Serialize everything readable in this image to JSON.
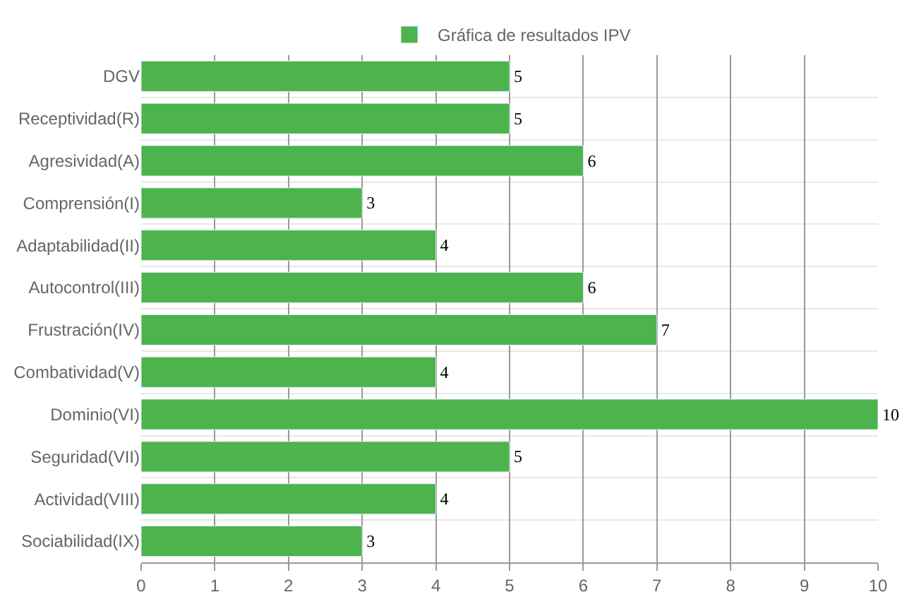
{
  "chart_data": {
    "type": "bar",
    "orientation": "horizontal",
    "categories": [
      "DGV",
      "Receptividad(R)",
      "Agresividad(A)",
      "Comprensión(I)",
      "Adaptabilidad(II)",
      "Autocontrol(III)",
      "Frustración(IV)",
      "Combatividad(V)",
      "Dominio(VI)",
      "Seguridad(VII)",
      "Actividad(VIII)",
      "Sociabilidad(IX)"
    ],
    "series": [
      {
        "name": "Gráfica de resultados IPV",
        "color": "#4db34d",
        "values": [
          5,
          5,
          6,
          3,
          4,
          6,
          7,
          4,
          10,
          5,
          4,
          3
        ]
      }
    ],
    "xlim": [
      0,
      10
    ],
    "xticks": [
      0,
      1,
      2,
      3,
      4,
      5,
      6,
      7,
      8,
      9,
      10
    ],
    "grid": true,
    "legend": "top",
    "data_labels": true
  }
}
